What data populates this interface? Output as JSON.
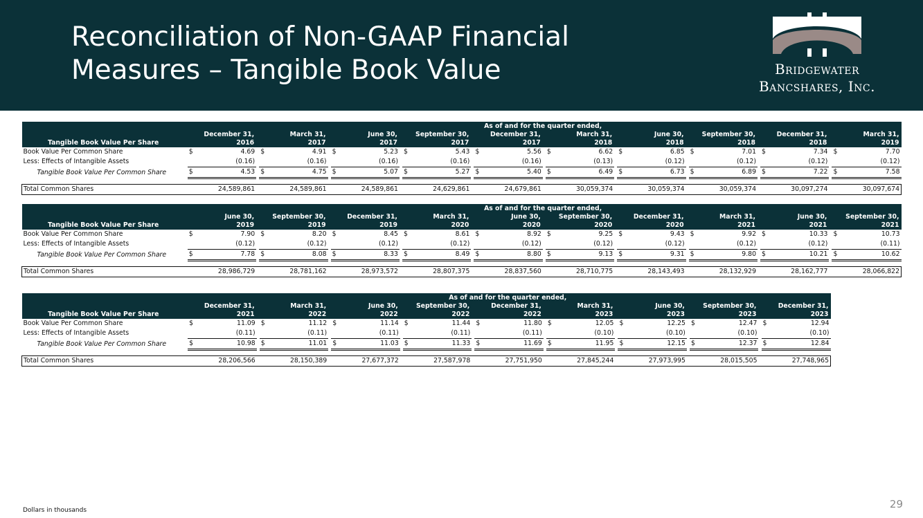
{
  "header": {
    "title_line1": "Reconciliation of Non-GAAP Financial",
    "title_line2": "Measures – Tangible Book Value",
    "logo_line1": "Bridgewater",
    "logo_line2": "Bancshares, Inc."
  },
  "row_labels": {
    "section": "Tangible Book Value Per Share",
    "band": "As of and for the quarter ended,",
    "bv": "Book Value Per Common Share",
    "less": "Less: Effects of Intangible Assets",
    "tbv": "Tangible Book Value Per Common Share",
    "shares": "Total Common Shares",
    "currency": "$"
  },
  "tables": [
    {
      "periods": [
        {
          "month": "December 31,",
          "year": "2016"
        },
        {
          "month": "March 31,",
          "year": "2017"
        },
        {
          "month": "June 30,",
          "year": "2017"
        },
        {
          "month": "September 30,",
          "year": "2017"
        },
        {
          "month": "December 31,",
          "year": "2017"
        },
        {
          "month": "March 31,",
          "year": "2018"
        },
        {
          "month": "June 30,",
          "year": "2018"
        },
        {
          "month": "September 30,",
          "year": "2018"
        },
        {
          "month": "December 31,",
          "year": "2018"
        },
        {
          "month": "March 31,",
          "year": "2019"
        }
      ],
      "book_value": [
        "4.69",
        "4.91",
        "5.23",
        "5.43",
        "5.56",
        "6.62",
        "6.85",
        "7.01",
        "7.34",
        "7.70"
      ],
      "intangibles": [
        "(0.16)",
        "(0.16)",
        "(0.16)",
        "(0.16)",
        "(0.16)",
        "(0.13)",
        "(0.12)",
        "(0.12)",
        "(0.12)",
        "(0.12)"
      ],
      "tangible": [
        "4.53",
        "4.75",
        "5.07",
        "5.27",
        "5.40",
        "6.49",
        "6.73",
        "6.89",
        "7.22",
        "7.58"
      ],
      "shares": [
        "24,589,861",
        "24,589,861",
        "24,589,861",
        "24,629,861",
        "24,679,861",
        "30,059,374",
        "30,059,374",
        "30,059,374",
        "30,097,274",
        "30,097,674"
      ]
    },
    {
      "periods": [
        {
          "month": "June 30,",
          "year": "2019"
        },
        {
          "month": "September 30,",
          "year": "2019"
        },
        {
          "month": "December 31,",
          "year": "2019"
        },
        {
          "month": "March 31,",
          "year": "2020"
        },
        {
          "month": "June 30,",
          "year": "2020"
        },
        {
          "month": "September 30,",
          "year": "2020"
        },
        {
          "month": "December 31,",
          "year": "2020"
        },
        {
          "month": "March 31,",
          "year": "2021"
        },
        {
          "month": "June 30,",
          "year": "2021"
        },
        {
          "month": "September 30,",
          "year": "2021"
        }
      ],
      "book_value": [
        "7.90",
        "8.20",
        "8.45",
        "8.61",
        "8.92",
        "9.25",
        "9.43",
        "9.92",
        "10.33",
        "10.73"
      ],
      "intangibles": [
        "(0.12)",
        "(0.12)",
        "(0.12)",
        "(0.12)",
        "(0.12)",
        "(0.12)",
        "(0.12)",
        "(0.12)",
        "(0.12)",
        "(0.11)"
      ],
      "tangible": [
        "7.78",
        "8.08",
        "8.33",
        "8.49",
        "8.80",
        "9.13",
        "9.31",
        "9.80",
        "10.21",
        "10.62"
      ],
      "shares": [
        "28,986,729",
        "28,781,162",
        "28,973,572",
        "28,807,375",
        "28,837,560",
        "28,710,775",
        "28,143,493",
        "28,132,929",
        "28,162,777",
        "28,066,822"
      ]
    },
    {
      "periods": [
        {
          "month": "December 31,",
          "year": "2021"
        },
        {
          "month": "March 31,",
          "year": "2022"
        },
        {
          "month": "June 30,",
          "year": "2022"
        },
        {
          "month": "September 30,",
          "year": "2022"
        },
        {
          "month": "December 31,",
          "year": "2022"
        },
        {
          "month": "March 31,",
          "year": "2023"
        },
        {
          "month": "June 30,",
          "year": "2023"
        },
        {
          "month": "September 30,",
          "year": "2023"
        },
        {
          "month": "December 31,",
          "year": "2023"
        }
      ],
      "book_value": [
        "11.09",
        "11.12",
        "11.14",
        "11.44",
        "11.80",
        "12.05",
        "12.25",
        "12.47",
        "12.94"
      ],
      "intangibles": [
        "(0.11)",
        "(0.11)",
        "(0.11)",
        "(0.11)",
        "(0.11)",
        "(0.10)",
        "(0.10)",
        "(0.10)",
        "(0.10)"
      ],
      "tangible": [
        "10.98",
        "11.01",
        "11.03",
        "11.33",
        "11.69",
        "11.95",
        "12.15",
        "12.37",
        "12.84"
      ],
      "shares": [
        "28,206,566",
        "28,150,389",
        "27,677,372",
        "27,587,978",
        "27,751,950",
        "27,845,244",
        "27,973,995",
        "28,015,505",
        "27,748,965"
      ]
    }
  ],
  "footer": {
    "note": "Dollars in thousands",
    "page_number": "29"
  },
  "colors": {
    "brand_dark_teal": "#0b3138",
    "logo_taupe": "#9a8a87",
    "page_number_gray": "#8a8a8a"
  }
}
